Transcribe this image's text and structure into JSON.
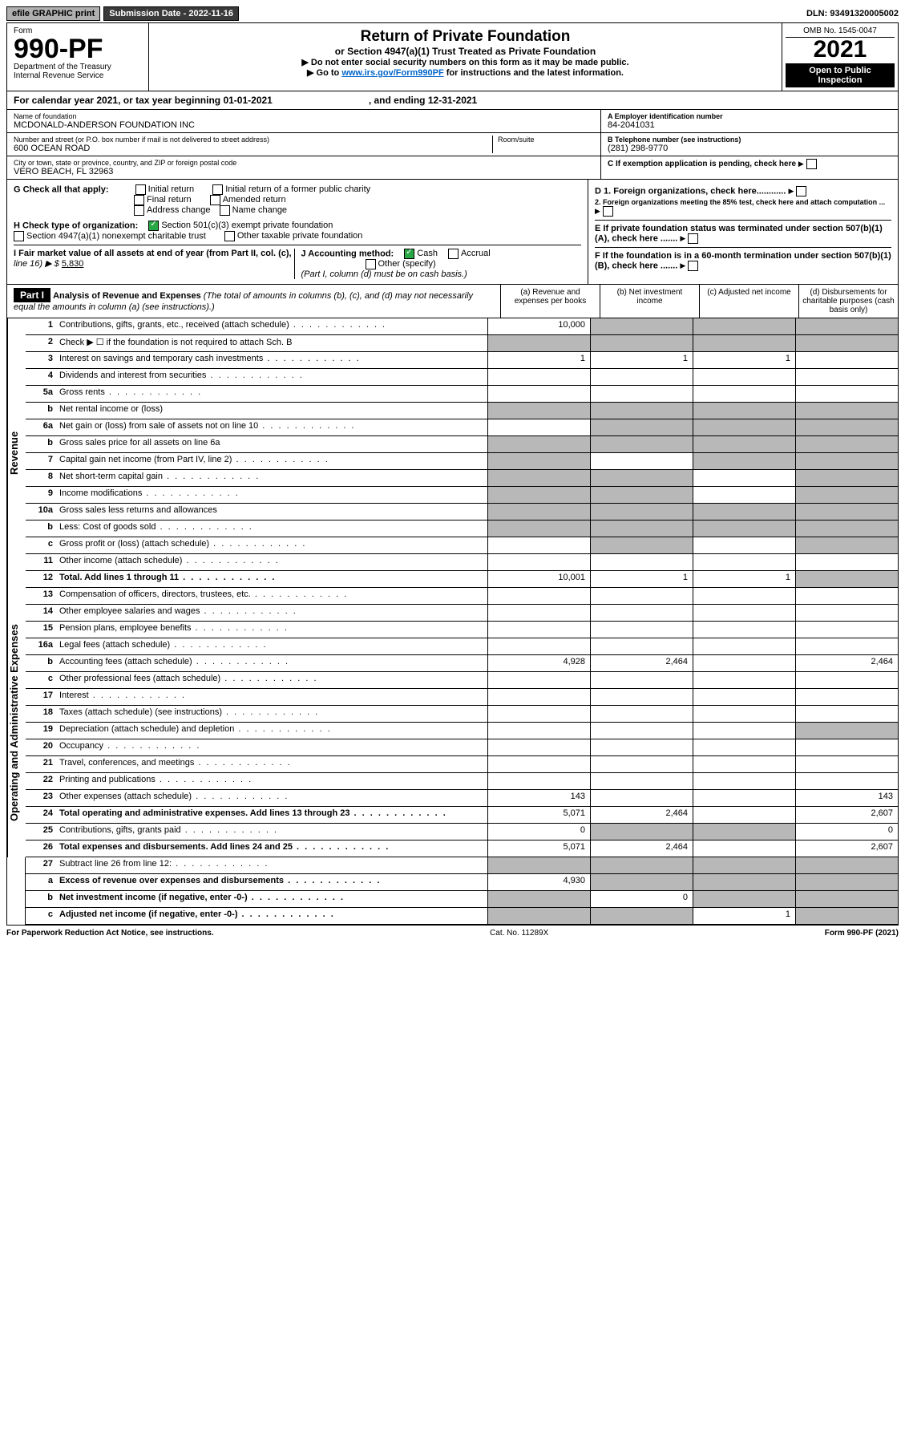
{
  "topbar": {
    "efile": "efile GRAPHIC print",
    "subdate_label": "Submission Date - ",
    "subdate": "2022-11-16",
    "dln_label": "DLN: ",
    "dln": "93491320005002"
  },
  "header": {
    "form_word": "Form",
    "form_num": "990-PF",
    "dept": "Department of the Treasury",
    "irs": "Internal Revenue Service",
    "title": "Return of Private Foundation",
    "subtitle": "or Section 4947(a)(1) Trust Treated as Private Foundation",
    "note1": "▶ Do not enter social security numbers on this form as it may be made public.",
    "note2_pre": "▶ Go to ",
    "note2_link": "www.irs.gov/Form990PF",
    "note2_post": " for instructions and the latest information.",
    "omb": "OMB No. 1545-0047",
    "year": "2021",
    "open": "Open to Public Inspection"
  },
  "calyear": {
    "pre": "For calendar year 2021, or tax year beginning ",
    "begin": "01-01-2021",
    "mid": ", and ending ",
    "end": "12-31-2021"
  },
  "entity": {
    "name_lbl": "Name of foundation",
    "name": "MCDONALD-ANDERSON FOUNDATION INC",
    "addr_lbl": "Number and street (or P.O. box number if mail is not delivered to street address)",
    "room_lbl": "Room/suite",
    "addr": "600 OCEAN ROAD",
    "city_lbl": "City or town, state or province, country, and ZIP or foreign postal code",
    "city": "VERO BEACH, FL  32963",
    "ein_lbl": "A Employer identification number",
    "ein": "84-2041031",
    "tel_lbl": "B Telephone number (see instructions)",
    "tel": "(281) 298-9770",
    "c_lbl": "C If exemption application is pending, check here"
  },
  "g": {
    "lbl": "G Check all that apply:",
    "opts": [
      "Initial return",
      "Initial return of a former public charity",
      "Final return",
      "Amended return",
      "Address change",
      "Name change"
    ]
  },
  "h": {
    "lbl": "H Check type of organization:",
    "o1": "Section 501(c)(3) exempt private foundation",
    "o2": "Section 4947(a)(1) nonexempt charitable trust",
    "o3": "Other taxable private foundation"
  },
  "d": {
    "d1": "D 1. Foreign organizations, check here............",
    "d2": "2. Foreign organizations meeting the 85% test, check here and attach computation ..."
  },
  "e": {
    "txt": "E  If private foundation status was terminated under section 507(b)(1)(A), check here ......."
  },
  "f": {
    "txt": "F  If the foundation is in a 60-month termination under section 507(b)(1)(B), check here ......."
  },
  "i": {
    "lbl": "I Fair market value of all assets at end of year (from Part II, col. (c),",
    "line": "line 16) ▶ $",
    "val": "5,830"
  },
  "j": {
    "lbl": "J Accounting method:",
    "cash": "Cash",
    "accrual": "Accrual",
    "other": "Other (specify)",
    "note": "(Part I, column (d) must be on cash basis.)"
  },
  "part1": {
    "hdr": "Part I",
    "title": "Analysis of Revenue and Expenses",
    "sub": "(The total of amounts in columns (b), (c), and (d) may not necessarily equal the amounts in column (a) (see instructions).)",
    "cols": [
      "(a)  Revenue and expenses per books",
      "(b)  Net investment income",
      "(c)  Adjusted net income",
      "(d)  Disbursements for charitable purposes (cash basis only)"
    ]
  },
  "sides": {
    "rev": "Revenue",
    "exp": "Operating and Administrative Expenses"
  },
  "lines": [
    {
      "n": "1",
      "d": "Contributions, gifts, grants, etc., received (attach schedule)",
      "a": "10,000",
      "shade": [
        "b",
        "c",
        "d"
      ]
    },
    {
      "n": "2",
      "d": "Check ▶ ☐ if the foundation is not required to attach Sch. B",
      "shade": [
        "a",
        "b",
        "c",
        "d"
      ],
      "nodots": true
    },
    {
      "n": "3",
      "d": "Interest on savings and temporary cash investments",
      "a": "1",
      "b": "1",
      "c": "1"
    },
    {
      "n": "4",
      "d": "Dividends and interest from securities"
    },
    {
      "n": "5a",
      "d": "Gross rents"
    },
    {
      "n": "b",
      "d": "Net rental income or (loss)",
      "shade": [
        "a",
        "b",
        "c",
        "d"
      ],
      "nodots": true
    },
    {
      "n": "6a",
      "d": "Net gain or (loss) from sale of assets not on line 10",
      "shade": [
        "b",
        "c",
        "d"
      ]
    },
    {
      "n": "b",
      "d": "Gross sales price for all assets on line 6a",
      "shade": [
        "a",
        "b",
        "c",
        "d"
      ],
      "nodots": true
    },
    {
      "n": "7",
      "d": "Capital gain net income (from Part IV, line 2)",
      "shade": [
        "a",
        "c",
        "d"
      ]
    },
    {
      "n": "8",
      "d": "Net short-term capital gain",
      "shade": [
        "a",
        "b",
        "d"
      ]
    },
    {
      "n": "9",
      "d": "Income modifications",
      "shade": [
        "a",
        "b",
        "d"
      ]
    },
    {
      "n": "10a",
      "d": "Gross sales less returns and allowances",
      "shade": [
        "a",
        "b",
        "c",
        "d"
      ],
      "nodots": true
    },
    {
      "n": "b",
      "d": "Less: Cost of goods sold",
      "shade": [
        "a",
        "b",
        "c",
        "d"
      ]
    },
    {
      "n": "c",
      "d": "Gross profit or (loss) (attach schedule)",
      "shade": [
        "b",
        "d"
      ]
    },
    {
      "n": "11",
      "d": "Other income (attach schedule)"
    },
    {
      "n": "12",
      "d": "Total. Add lines 1 through 11",
      "a": "10,001",
      "b": "1",
      "c": "1",
      "bold": true,
      "shade": [
        "d"
      ]
    },
    {
      "n": "13",
      "d": "Compensation of officers, directors, trustees, etc.",
      "sec": "exp"
    },
    {
      "n": "14",
      "d": "Other employee salaries and wages"
    },
    {
      "n": "15",
      "d": "Pension plans, employee benefits"
    },
    {
      "n": "16a",
      "d": "Legal fees (attach schedule)"
    },
    {
      "n": "b",
      "d": "Accounting fees (attach schedule)",
      "a": "4,928",
      "b": "2,464",
      "d_": "2,464"
    },
    {
      "n": "c",
      "d": "Other professional fees (attach schedule)"
    },
    {
      "n": "17",
      "d": "Interest"
    },
    {
      "n": "18",
      "d": "Taxes (attach schedule) (see instructions)"
    },
    {
      "n": "19",
      "d": "Depreciation (attach schedule) and depletion",
      "shade": [
        "d"
      ]
    },
    {
      "n": "20",
      "d": "Occupancy"
    },
    {
      "n": "21",
      "d": "Travel, conferences, and meetings"
    },
    {
      "n": "22",
      "d": "Printing and publications"
    },
    {
      "n": "23",
      "d": "Other expenses (attach schedule)",
      "a": "143",
      "d_": "143"
    },
    {
      "n": "24",
      "d": "Total operating and administrative expenses. Add lines 13 through 23",
      "a": "5,071",
      "b": "2,464",
      "d_": "2,607",
      "bold": true
    },
    {
      "n": "25",
      "d": "Contributions, gifts, grants paid",
      "a": "0",
      "d_": "0",
      "shade": [
        "b",
        "c"
      ]
    },
    {
      "n": "26",
      "d": "Total expenses and disbursements. Add lines 24 and 25",
      "a": "5,071",
      "b": "2,464",
      "d_": "2,607",
      "bold": true
    },
    {
      "n": "27",
      "d": "Subtract line 26 from line 12:",
      "shade": [
        "a",
        "b",
        "c",
        "d"
      ],
      "sec": "none"
    },
    {
      "n": "a",
      "d": "Excess of revenue over expenses and disbursements",
      "a": "4,930",
      "bold": true,
      "shade": [
        "b",
        "c",
        "d"
      ]
    },
    {
      "n": "b",
      "d": "Net investment income (if negative, enter -0-)",
      "b": "0",
      "bold": true,
      "shade": [
        "a",
        "c",
        "d"
      ]
    },
    {
      "n": "c",
      "d": "Adjusted net income (if negative, enter -0-)",
      "c": "1",
      "bold": true,
      "shade": [
        "a",
        "b",
        "d"
      ]
    }
  ],
  "footer": {
    "left": "For Paperwork Reduction Act Notice, see instructions.",
    "mid": "Cat. No. 11289X",
    "right": "Form 990-PF (2021)"
  }
}
